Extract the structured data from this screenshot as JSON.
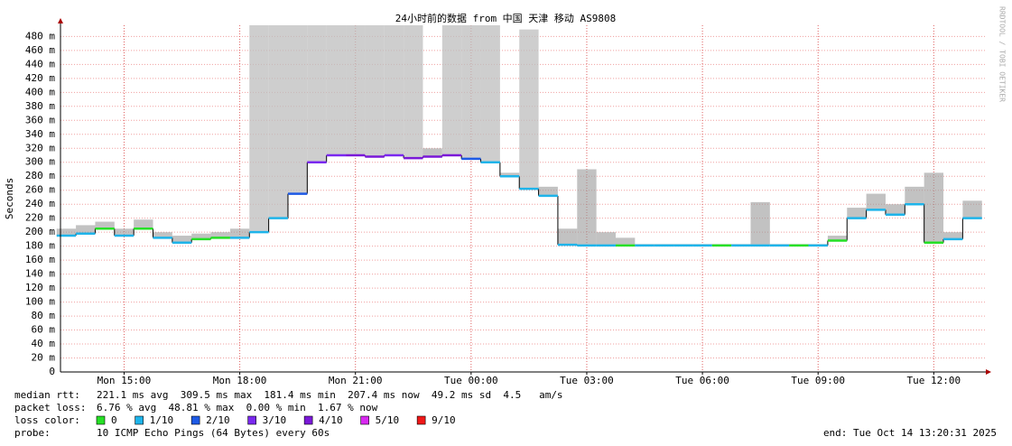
{
  "chart_data": {
    "type": "smokeping",
    "title": "24小时前的数据 from 中国 天津 移动 AS9808",
    "y_label": "Seconds",
    "watermark": "RRDTOOL / TOBI OETIKER",
    "xlim": [
      13.35,
      37.35
    ],
    "xticks": [
      {
        "value": 15,
        "label": "Mon 15:00"
      },
      {
        "value": 18,
        "label": "Mon 18:00"
      },
      {
        "value": 21,
        "label": "Mon 21:00"
      },
      {
        "value": 24,
        "label": "Tue 00:00"
      },
      {
        "value": 27,
        "label": "Tue 03:00"
      },
      {
        "value": 30,
        "label": "Tue 06:00"
      },
      {
        "value": 33,
        "label": "Tue 09:00"
      },
      {
        "value": 36,
        "label": "Tue 12:00"
      }
    ],
    "ylim": [
      0,
      496
    ],
    "yticks": [
      0,
      {
        "value": 20,
        "label": "20 m"
      },
      {
        "value": 40,
        "label": "40 m"
      },
      {
        "value": 60,
        "label": "60 m"
      },
      {
        "value": 80,
        "label": "80 m"
      },
      {
        "value": 100,
        "label": "100 m"
      },
      {
        "value": 120,
        "label": "120 m"
      },
      {
        "value": 140,
        "label": "140 m"
      },
      {
        "value": 160,
        "label": "160 m"
      },
      {
        "value": 180,
        "label": "180 m"
      },
      {
        "value": 200,
        "label": "200 m"
      },
      {
        "value": 220,
        "label": "220 m"
      },
      {
        "value": 240,
        "label": "240 m"
      },
      {
        "value": 260,
        "label": "260 m"
      },
      {
        "value": 280,
        "label": "280 m"
      },
      {
        "value": 300,
        "label": "300 m"
      },
      {
        "value": 320,
        "label": "320 m"
      },
      {
        "value": 340,
        "label": "340 m"
      },
      {
        "value": 360,
        "label": "360 m"
      },
      {
        "value": 380,
        "label": "380 m"
      },
      {
        "value": 400,
        "label": "400 m"
      },
      {
        "value": 420,
        "label": "420 m"
      },
      {
        "value": 440,
        "label": "440 m"
      },
      {
        "value": 460,
        "label": "460 m"
      },
      {
        "value": 480,
        "label": "480 m"
      }
    ],
    "grid": true,
    "x": [
      13.5,
      14,
      14.5,
      15,
      15.5,
      16,
      16.5,
      17,
      17.5,
      18,
      18.5,
      19,
      19.5,
      20,
      20.5,
      21,
      21.5,
      22,
      22.5,
      23,
      23.5,
      24,
      24.5,
      25,
      25.5,
      26,
      26.5,
      27,
      27.5,
      28,
      28.5,
      29,
      29.5,
      30,
      30.5,
      31,
      31.5,
      32,
      32.5,
      33,
      33.5,
      34,
      34.5,
      35,
      35.5,
      36,
      36.5,
      37
    ],
    "median": [
      195,
      198,
      205,
      195,
      205,
      192,
      185,
      190,
      192,
      192,
      200,
      220,
      255,
      300,
      310,
      310,
      308,
      310,
      306,
      308,
      310,
      305,
      300,
      280,
      262,
      252,
      182,
      181,
      181,
      181,
      181,
      181,
      181,
      181,
      181,
      181,
      181,
      181,
      181,
      181,
      188,
      220,
      232,
      225,
      240,
      185,
      190,
      220
    ],
    "max": [
      205,
      210,
      215,
      205,
      218,
      200,
      195,
      198,
      200,
      205,
      496,
      496,
      496,
      496,
      496,
      496,
      496,
      496,
      496,
      320,
      496,
      496,
      496,
      285,
      490,
      265,
      205,
      290,
      200,
      192,
      183,
      183,
      183,
      183,
      183,
      183,
      243,
      183,
      183,
      183,
      195,
      235,
      255,
      240,
      265,
      285,
      200,
      245
    ],
    "loss": [
      1,
      1,
      0,
      1,
      0,
      1,
      1,
      0,
      0,
      1,
      1,
      1,
      2,
      3,
      3,
      4,
      4,
      3,
      4,
      4,
      4,
      2,
      1,
      1,
      1,
      1,
      1,
      1,
      1,
      0,
      1,
      1,
      1,
      1,
      0,
      1,
      1,
      1,
      0,
      1,
      0,
      1,
      1,
      1,
      1,
      0,
      1,
      1
    ],
    "loss_title": "loss color:",
    "loss_legend": [
      {
        "value": 0,
        "label": "0",
        "color": "#26e026"
      },
      {
        "value": 1,
        "label": "1/10",
        "color": "#1eb4ea"
      },
      {
        "value": 2,
        "label": "2/10",
        "color": "#1e5ae6"
      },
      {
        "value": 3,
        "label": "3/10",
        "color": "#7a28f0"
      },
      {
        "value": 4,
        "label": "4/10",
        "color": "#7a18d8"
      },
      {
        "value": 5,
        "label": "5/10",
        "color": "#d828f0"
      },
      {
        "value": 9,
        "label": "9/10",
        "color": "#f01818"
      }
    ],
    "stats": [
      {
        "label": "median rtt:",
        "text": "221.1 ms avg  309.5 ms max  181.4 ms min  207.4 ms now  49.2 ms sd  4.5   am/s"
      },
      {
        "label": "packet loss:",
        "text": "6.76 % avg  48.81 % max  0.00 % min  1.67 % now"
      },
      {
        "label": "probe:",
        "text": "10 ICMP Echo Pings (64 Bytes) every 60s"
      }
    ],
    "end": "end: Tue Oct 14 13:20:31 2025"
  }
}
